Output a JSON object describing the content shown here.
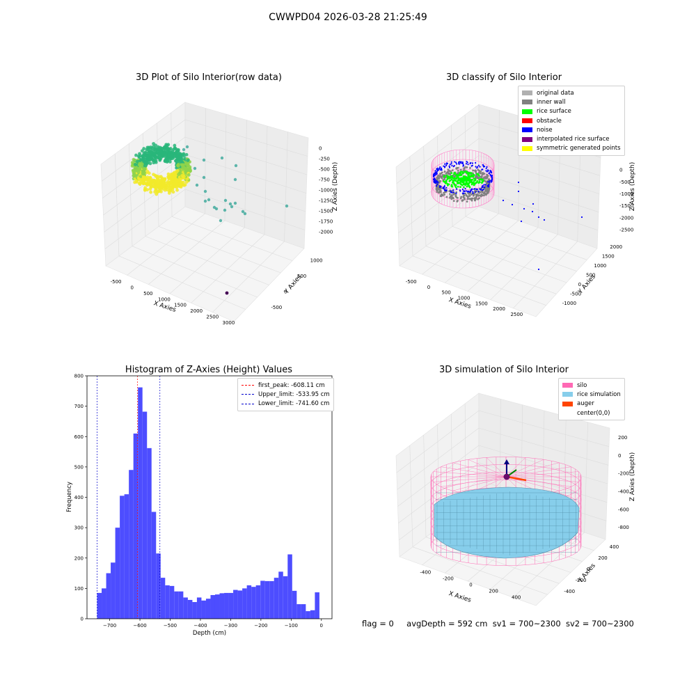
{
  "figure": {
    "suptitle": "CWWPD04 2026-03-28 21:25:49",
    "footer": {
      "flag": "flag = 0",
      "avg_depth": "avgDepth = 592 cm",
      "sv1": "sv1 = 700~2300",
      "sv2": "sv2 = 700~2300"
    }
  },
  "chart_data": [
    {
      "type": "scatter",
      "title": "3D Plot of Silo Interior(row data)",
      "xlabel": "X Axies",
      "ylabel": "Y Axies",
      "zlabel": "Z Axies (Depth)",
      "x_ticks": [
        "-500",
        "0",
        "500",
        "1000",
        "1500",
        "2000",
        "2500",
        "3000"
      ],
      "y_ticks": [
        "-500",
        "0",
        "500",
        "1000"
      ],
      "z_ticks": [
        "0",
        "-250",
        "-500",
        "-750",
        "-1000",
        "-1250",
        "-1500",
        "-1750",
        "-2000"
      ],
      "colors": {
        "surface_high": "#f2ea2a",
        "surface_mid": "#8fd44b",
        "surface_low": "#29b67a",
        "outlier": "#3aa89a",
        "deep": "#440154"
      }
    },
    {
      "type": "scatter",
      "title": "3D classify of Silo Interior",
      "xlabel": "X Axies",
      "ylabel": "Y Axies",
      "zlabel": "Z Axies (Depth)",
      "x_ticks": [
        "-500",
        "0",
        "500",
        "1000",
        "1500",
        "2000",
        "2500"
      ],
      "y_ticks": [
        "-1000",
        "-500",
        "0",
        "500",
        "1000",
        "1500",
        "2000"
      ],
      "z_ticks": [
        "0",
        "-500",
        "-1000",
        "-1500",
        "-2000",
        "-2500"
      ],
      "legend": [
        {
          "label": "original data",
          "color": "#b0b0b0"
        },
        {
          "label": "inner wall",
          "color": "#808080"
        },
        {
          "label": "rice surface",
          "color": "#00ff00"
        },
        {
          "label": "obstacle",
          "color": "#ff0000"
        },
        {
          "label": "noise",
          "color": "#0000ff"
        },
        {
          "label": "interpolated rice surface",
          "color": "#800080"
        },
        {
          "label": "symmetric generated points",
          "color": "#ffff00"
        }
      ],
      "legend_position": "top-right"
    },
    {
      "type": "bar",
      "title": "Histogram of Z-Axies (Height) Values",
      "xlabel": "Depth (cm)",
      "ylabel": "Frequency",
      "xlim": [
        -775,
        35
      ],
      "ylim": [
        0,
        800
      ],
      "x_ticks": [
        -700,
        -600,
        -500,
        -400,
        -300,
        -200,
        -100,
        0
      ],
      "y_ticks": [
        0,
        100,
        200,
        300,
        400,
        500,
        600,
        700,
        800
      ],
      "bar_color": "#4d4dff",
      "bin_start": -741.6,
      "bin_width": 15.0,
      "values": [
        85,
        100,
        150,
        185,
        300,
        405,
        410,
        490,
        610,
        762,
        682,
        562,
        352,
        215,
        135,
        110,
        108,
        90,
        90,
        70,
        62,
        55,
        70,
        60,
        66,
        78,
        80,
        84,
        85,
        85,
        95,
        93,
        100,
        110,
        105,
        110,
        125,
        124,
        124,
        135,
        155,
        140,
        212,
        92,
        48,
        48,
        25,
        28,
        87
      ],
      "reference_lines": [
        {
          "label": "first_peak: -608.11 cm",
          "x": -608.11,
          "color": "#ff0000"
        },
        {
          "label": "Upper_limit: -533.95 cm",
          "x": -533.95,
          "color": "#0000cc"
        },
        {
          "label": "Lower_limit: -741.60 cm",
          "x": -741.6,
          "color": "#0000cc"
        }
      ],
      "legend_position": "top-right"
    },
    {
      "type": "surface",
      "title": "3D simulation of Silo Interior",
      "xlabel": "X Axies",
      "ylabel": "Y Axies",
      "zlabel": "Z Axies (Depth)",
      "x_ticks": [
        "-400",
        "-200",
        "0",
        "200",
        "400"
      ],
      "y_ticks": [
        "-400",
        "-200",
        "0",
        "200",
        "400"
      ],
      "z_ticks": [
        "200",
        "0",
        "-200",
        "-400",
        "-600",
        "-800"
      ],
      "legend": [
        {
          "label": "silo",
          "color": "#ff69b4"
        },
        {
          "label": "rice simulation",
          "color": "#87ceeb"
        },
        {
          "label": "auger",
          "color": "#ff4500"
        },
        {
          "label": "center(0,0)",
          "color": ""
        }
      ],
      "legend_position": "top-right"
    }
  ]
}
